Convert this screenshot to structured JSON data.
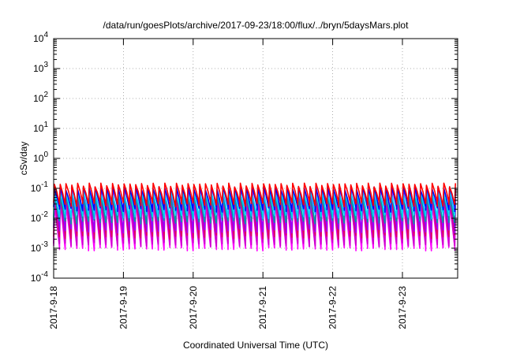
{
  "chart_data": {
    "type": "line",
    "title": "/data/run/goesPlots/archive/2017-09-23/18:00/flux/../bryn/5daysMars.plot",
    "xlabel": "Coordinated Universal Time (UTC)",
    "ylabel": "cSv/day",
    "yscale": "log",
    "ylim": [
      0.0001,
      10000
    ],
    "xlim": [
      "2017-09-18",
      "2017-09-23T19:00"
    ],
    "grid": true,
    "legend": "none",
    "x_ticks": [
      "2017-9-18",
      "2017-9-19",
      "2017-9-20",
      "2017-9-21",
      "2017-9-22",
      "2017-9-23"
    ],
    "y_ticks": [
      {
        "value": 0.0001,
        "mantissa": "10",
        "exp": "-4"
      },
      {
        "value": 0.001,
        "mantissa": "10",
        "exp": "-3"
      },
      {
        "value": 0.01,
        "mantissa": "10",
        "exp": "-2"
      },
      {
        "value": 0.1,
        "mantissa": "10",
        "exp": "-1"
      },
      {
        "value": 1,
        "mantissa": "10",
        "exp": "0"
      },
      {
        "value": 10,
        "mantissa": "10",
        "exp": "1"
      },
      {
        "value": 100,
        "mantissa": "10",
        "exp": "2"
      },
      {
        "value": 1000,
        "mantissa": "10",
        "exp": "3"
      },
      {
        "value": 10000,
        "mantissa": "10",
        "exp": "4"
      }
    ],
    "series_pattern": {
      "description_values": "periodic sawtooth dose rates, sharp rise then decay",
      "period_hours": 2.0,
      "day_start": "2017-09-18",
      "duration_days": 5.79
    },
    "series": [
      {
        "color": "#ff00ff",
        "peak": 0.03,
        "trough": 0.001
      },
      {
        "color": "#cc00cc",
        "peak": 0.04,
        "trough": 0.0014
      },
      {
        "color": "#e00060",
        "peak": 0.06,
        "trough": 0.0025
      },
      {
        "color": "#9900ff",
        "peak": 0.08,
        "trough": 0.004
      },
      {
        "color": "#00a0a0",
        "peak": 0.05,
        "trough": 0.008
      },
      {
        "color": "#00d0ff",
        "peak": 0.07,
        "trough": 0.012
      },
      {
        "color": "#0000ff",
        "peak": 0.1,
        "trough": 0.02
      },
      {
        "color": "#ff0000",
        "peak": 0.13,
        "trough": 0.03
      }
    ]
  }
}
